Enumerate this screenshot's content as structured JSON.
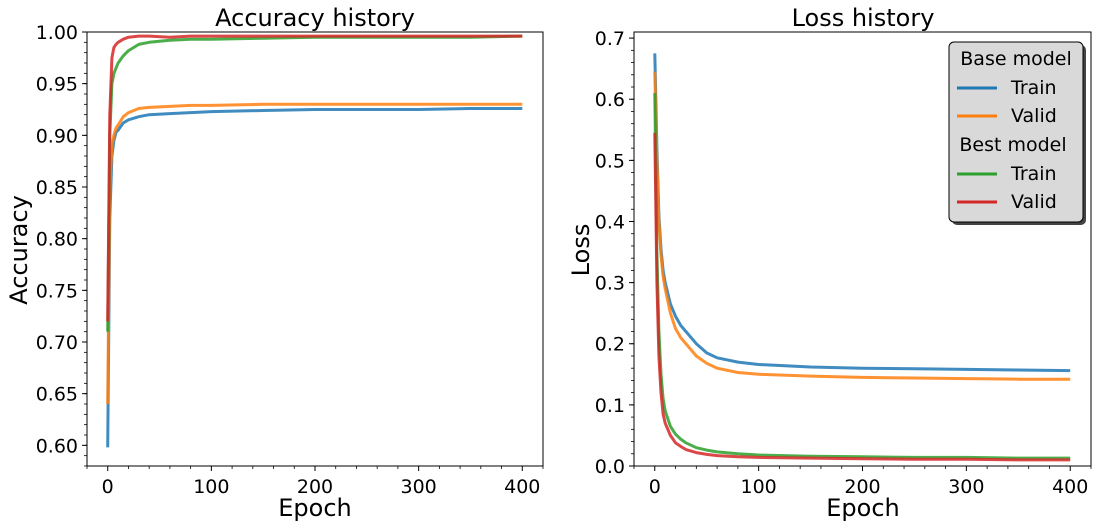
{
  "chart_data": [
    {
      "type": "line",
      "title": "Accuracy history",
      "xlabel": "Epoch",
      "ylabel": "Accuracy",
      "xlim": [
        -20,
        420
      ],
      "ylim": [
        0.58,
        1.0
      ],
      "xticks": [
        0,
        100,
        200,
        300,
        400
      ],
      "yticks": [
        0.6,
        0.65,
        0.7,
        0.75,
        0.8,
        0.85,
        0.9,
        0.95,
        1.0
      ],
      "xtick_labels": [
        "0",
        "100",
        "200",
        "300",
        "400"
      ],
      "ytick_labels": [
        "0.60",
        "0.65",
        "0.70",
        "0.75",
        "0.80",
        "0.85",
        "0.90",
        "0.95",
        "1.00"
      ],
      "grid": false,
      "series": [
        {
          "group": "Base model",
          "name": "Train",
          "color": "#1f77b4",
          "x": [
            0,
            2,
            4,
            6,
            8,
            10,
            15,
            20,
            30,
            40,
            60,
            80,
            100,
            150,
            200,
            250,
            300,
            350,
            400
          ],
          "y": [
            0.598,
            0.82,
            0.88,
            0.895,
            0.903,
            0.905,
            0.912,
            0.915,
            0.918,
            0.92,
            0.921,
            0.922,
            0.923,
            0.924,
            0.925,
            0.925,
            0.925,
            0.926,
            0.926
          ]
        },
        {
          "group": "Base model",
          "name": "Valid",
          "color": "#ff7f0e",
          "x": [
            0,
            2,
            4,
            6,
            8,
            10,
            15,
            20,
            30,
            40,
            60,
            80,
            100,
            150,
            200,
            250,
            300,
            350,
            400
          ],
          "y": [
            0.64,
            0.85,
            0.89,
            0.9,
            0.907,
            0.91,
            0.918,
            0.922,
            0.926,
            0.927,
            0.928,
            0.929,
            0.929,
            0.93,
            0.93,
            0.93,
            0.93,
            0.93,
            0.93
          ]
        },
        {
          "group": "Best model",
          "name": "Train",
          "color": "#2ca02c",
          "x": [
            0,
            2,
            4,
            6,
            8,
            10,
            15,
            20,
            30,
            40,
            60,
            80,
            100,
            150,
            200,
            250,
            300,
            350,
            400
          ],
          "y": [
            0.71,
            0.9,
            0.95,
            0.96,
            0.965,
            0.97,
            0.977,
            0.982,
            0.988,
            0.99,
            0.992,
            0.993,
            0.993,
            0.994,
            0.995,
            0.995,
            0.995,
            0.995,
            0.996
          ]
        },
        {
          "group": "Best model",
          "name": "Valid",
          "color": "#d62728",
          "x": [
            0,
            2,
            4,
            6,
            8,
            10,
            15,
            20,
            30,
            40,
            60,
            80,
            100,
            150,
            200,
            250,
            300,
            350,
            400
          ],
          "y": [
            0.72,
            0.92,
            0.975,
            0.985,
            0.988,
            0.99,
            0.993,
            0.995,
            0.996,
            0.996,
            0.995,
            0.996,
            0.996,
            0.996,
            0.996,
            0.996,
            0.996,
            0.996,
            0.996
          ]
        }
      ]
    },
    {
      "type": "line",
      "title": "Loss history",
      "xlabel": "Epoch",
      "ylabel": "Loss",
      "xlim": [
        -20,
        420
      ],
      "ylim": [
        0.0,
        0.71
      ],
      "xticks": [
        0,
        100,
        200,
        300,
        400
      ],
      "yticks": [
        0.0,
        0.1,
        0.2,
        0.3,
        0.4,
        0.5,
        0.6,
        0.7
      ],
      "xtick_labels": [
        "0",
        "100",
        "200",
        "300",
        "400"
      ],
      "ytick_labels": [
        "0.0",
        "0.1",
        "0.2",
        "0.3",
        "0.4",
        "0.5",
        "0.6",
        "0.7"
      ],
      "grid": false,
      "legend": {
        "placement": "top-right",
        "groups": [
          {
            "title": "Base model",
            "entries": [
              {
                "label": "Train",
                "color": "#1f77b4"
              },
              {
                "label": "Valid",
                "color": "#ff7f0e"
              }
            ]
          },
          {
            "title": "Best model",
            "entries": [
              {
                "label": "Train",
                "color": "#2ca02c"
              },
              {
                "label": "Valid",
                "color": "#d62728"
              }
            ]
          }
        ]
      },
      "series": [
        {
          "group": "Base model",
          "name": "Train",
          "color": "#1f77b4",
          "x": [
            0,
            2,
            4,
            6,
            8,
            10,
            15,
            20,
            25,
            30,
            40,
            50,
            60,
            80,
            100,
            150,
            200,
            250,
            300,
            350,
            400
          ],
          "y": [
            0.675,
            0.52,
            0.41,
            0.355,
            0.32,
            0.3,
            0.265,
            0.245,
            0.23,
            0.22,
            0.2,
            0.185,
            0.177,
            0.17,
            0.166,
            0.162,
            0.16,
            0.159,
            0.158,
            0.157,
            0.156
          ]
        },
        {
          "group": "Base model",
          "name": "Valid",
          "color": "#ff7f0e",
          "x": [
            0,
            2,
            4,
            6,
            8,
            10,
            15,
            20,
            25,
            30,
            40,
            50,
            60,
            80,
            100,
            150,
            200,
            250,
            300,
            350,
            400
          ],
          "y": [
            0.645,
            0.5,
            0.4,
            0.345,
            0.31,
            0.29,
            0.25,
            0.225,
            0.21,
            0.2,
            0.18,
            0.168,
            0.16,
            0.153,
            0.15,
            0.147,
            0.145,
            0.144,
            0.143,
            0.142,
            0.142
          ]
        },
        {
          "group": "Best model",
          "name": "Train",
          "color": "#2ca02c",
          "x": [
            0,
            2,
            4,
            6,
            8,
            10,
            15,
            20,
            25,
            30,
            40,
            50,
            60,
            80,
            100,
            150,
            200,
            250,
            300,
            350,
            400
          ],
          "y": [
            0.61,
            0.35,
            0.22,
            0.15,
            0.11,
            0.09,
            0.065,
            0.052,
            0.044,
            0.038,
            0.03,
            0.026,
            0.023,
            0.02,
            0.018,
            0.016,
            0.015,
            0.014,
            0.014,
            0.013,
            0.013
          ]
        },
        {
          "group": "Best model",
          "name": "Valid",
          "color": "#d62728",
          "x": [
            0,
            2,
            4,
            6,
            8,
            10,
            15,
            20,
            25,
            30,
            40,
            50,
            60,
            80,
            100,
            150,
            200,
            250,
            300,
            350,
            400
          ],
          "y": [
            0.545,
            0.3,
            0.18,
            0.12,
            0.085,
            0.07,
            0.05,
            0.038,
            0.032,
            0.027,
            0.022,
            0.019,
            0.017,
            0.015,
            0.014,
            0.013,
            0.012,
            0.011,
            0.011,
            0.01,
            0.01
          ]
        }
      ]
    }
  ]
}
